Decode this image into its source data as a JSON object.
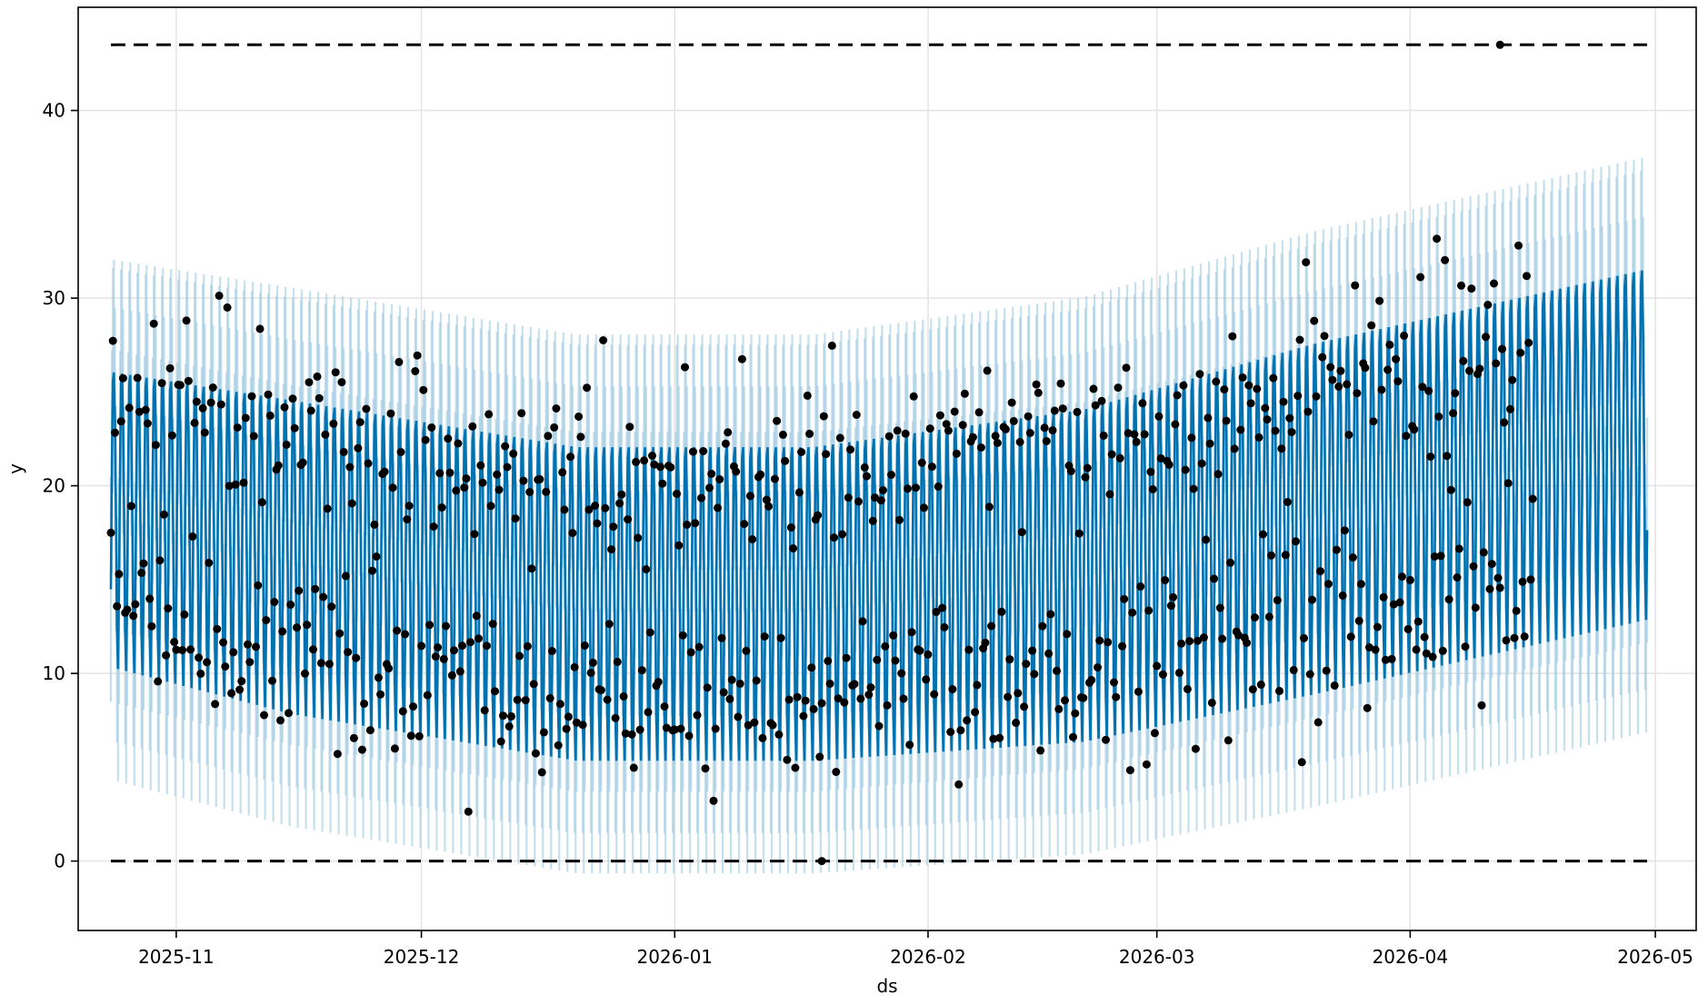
{
  "chart_data": {
    "type": "line",
    "title": "",
    "xlabel": "ds",
    "ylabel": "y",
    "x_range": [
      "2025-10-20",
      "2026-05-06"
    ],
    "ylim": [
      -3.7,
      45.5
    ],
    "grid": true,
    "legend": "none",
    "x_ticks": [
      {
        "date": "2025-11-01",
        "label": "2025-11"
      },
      {
        "date": "2025-12-01",
        "label": "2025-12"
      },
      {
        "date": "2026-01-01",
        "label": "2026-01"
      },
      {
        "date": "2026-02-01",
        "label": "2026-02"
      },
      {
        "date": "2026-03-01",
        "label": "2026-03"
      },
      {
        "date": "2026-04-01",
        "label": "2026-04"
      },
      {
        "date": "2026-05-01",
        "label": "2026-05"
      }
    ],
    "y_ticks": [
      0,
      10,
      20,
      30,
      40
    ],
    "history_range": [
      "2025-10-24",
      "2026-04-16"
    ],
    "forecast_range": [
      "2025-10-24",
      "2026-04-30"
    ],
    "cap": 43.5,
    "floor": 0,
    "trend_anchors": [
      {
        "date": "2025-10-24",
        "center": 19.0,
        "amplitude": 8.0
      },
      {
        "date": "2025-11-15",
        "center": 17.0,
        "amplitude": 8.5
      },
      {
        "date": "2025-12-20",
        "center": 14.5,
        "amplitude": 8.5
      },
      {
        "date": "2026-01-18",
        "center": 14.5,
        "amplitude": 8.5
      },
      {
        "date": "2026-02-20",
        "center": 16.0,
        "amplitude": 9.0
      },
      {
        "date": "2026-03-20",
        "center": 19.0,
        "amplitude": 9.5
      },
      {
        "date": "2026-04-30",
        "center": 23.0,
        "amplitude": 9.5
      }
    ],
    "uncertainty_halfwidth": 6.0,
    "extreme_observations": {
      "max": {
        "date": "2026-04-12",
        "y": 43.5
      },
      "min": {
        "date": "2026-01-19",
        "y": 0.0
      }
    },
    "colors": {
      "forecast_line": "#0072B2",
      "uncertainty_band": "#9ECAE1",
      "observations": "#000000",
      "cap_floor": "#000000",
      "grid": "#E5E5E5"
    }
  }
}
